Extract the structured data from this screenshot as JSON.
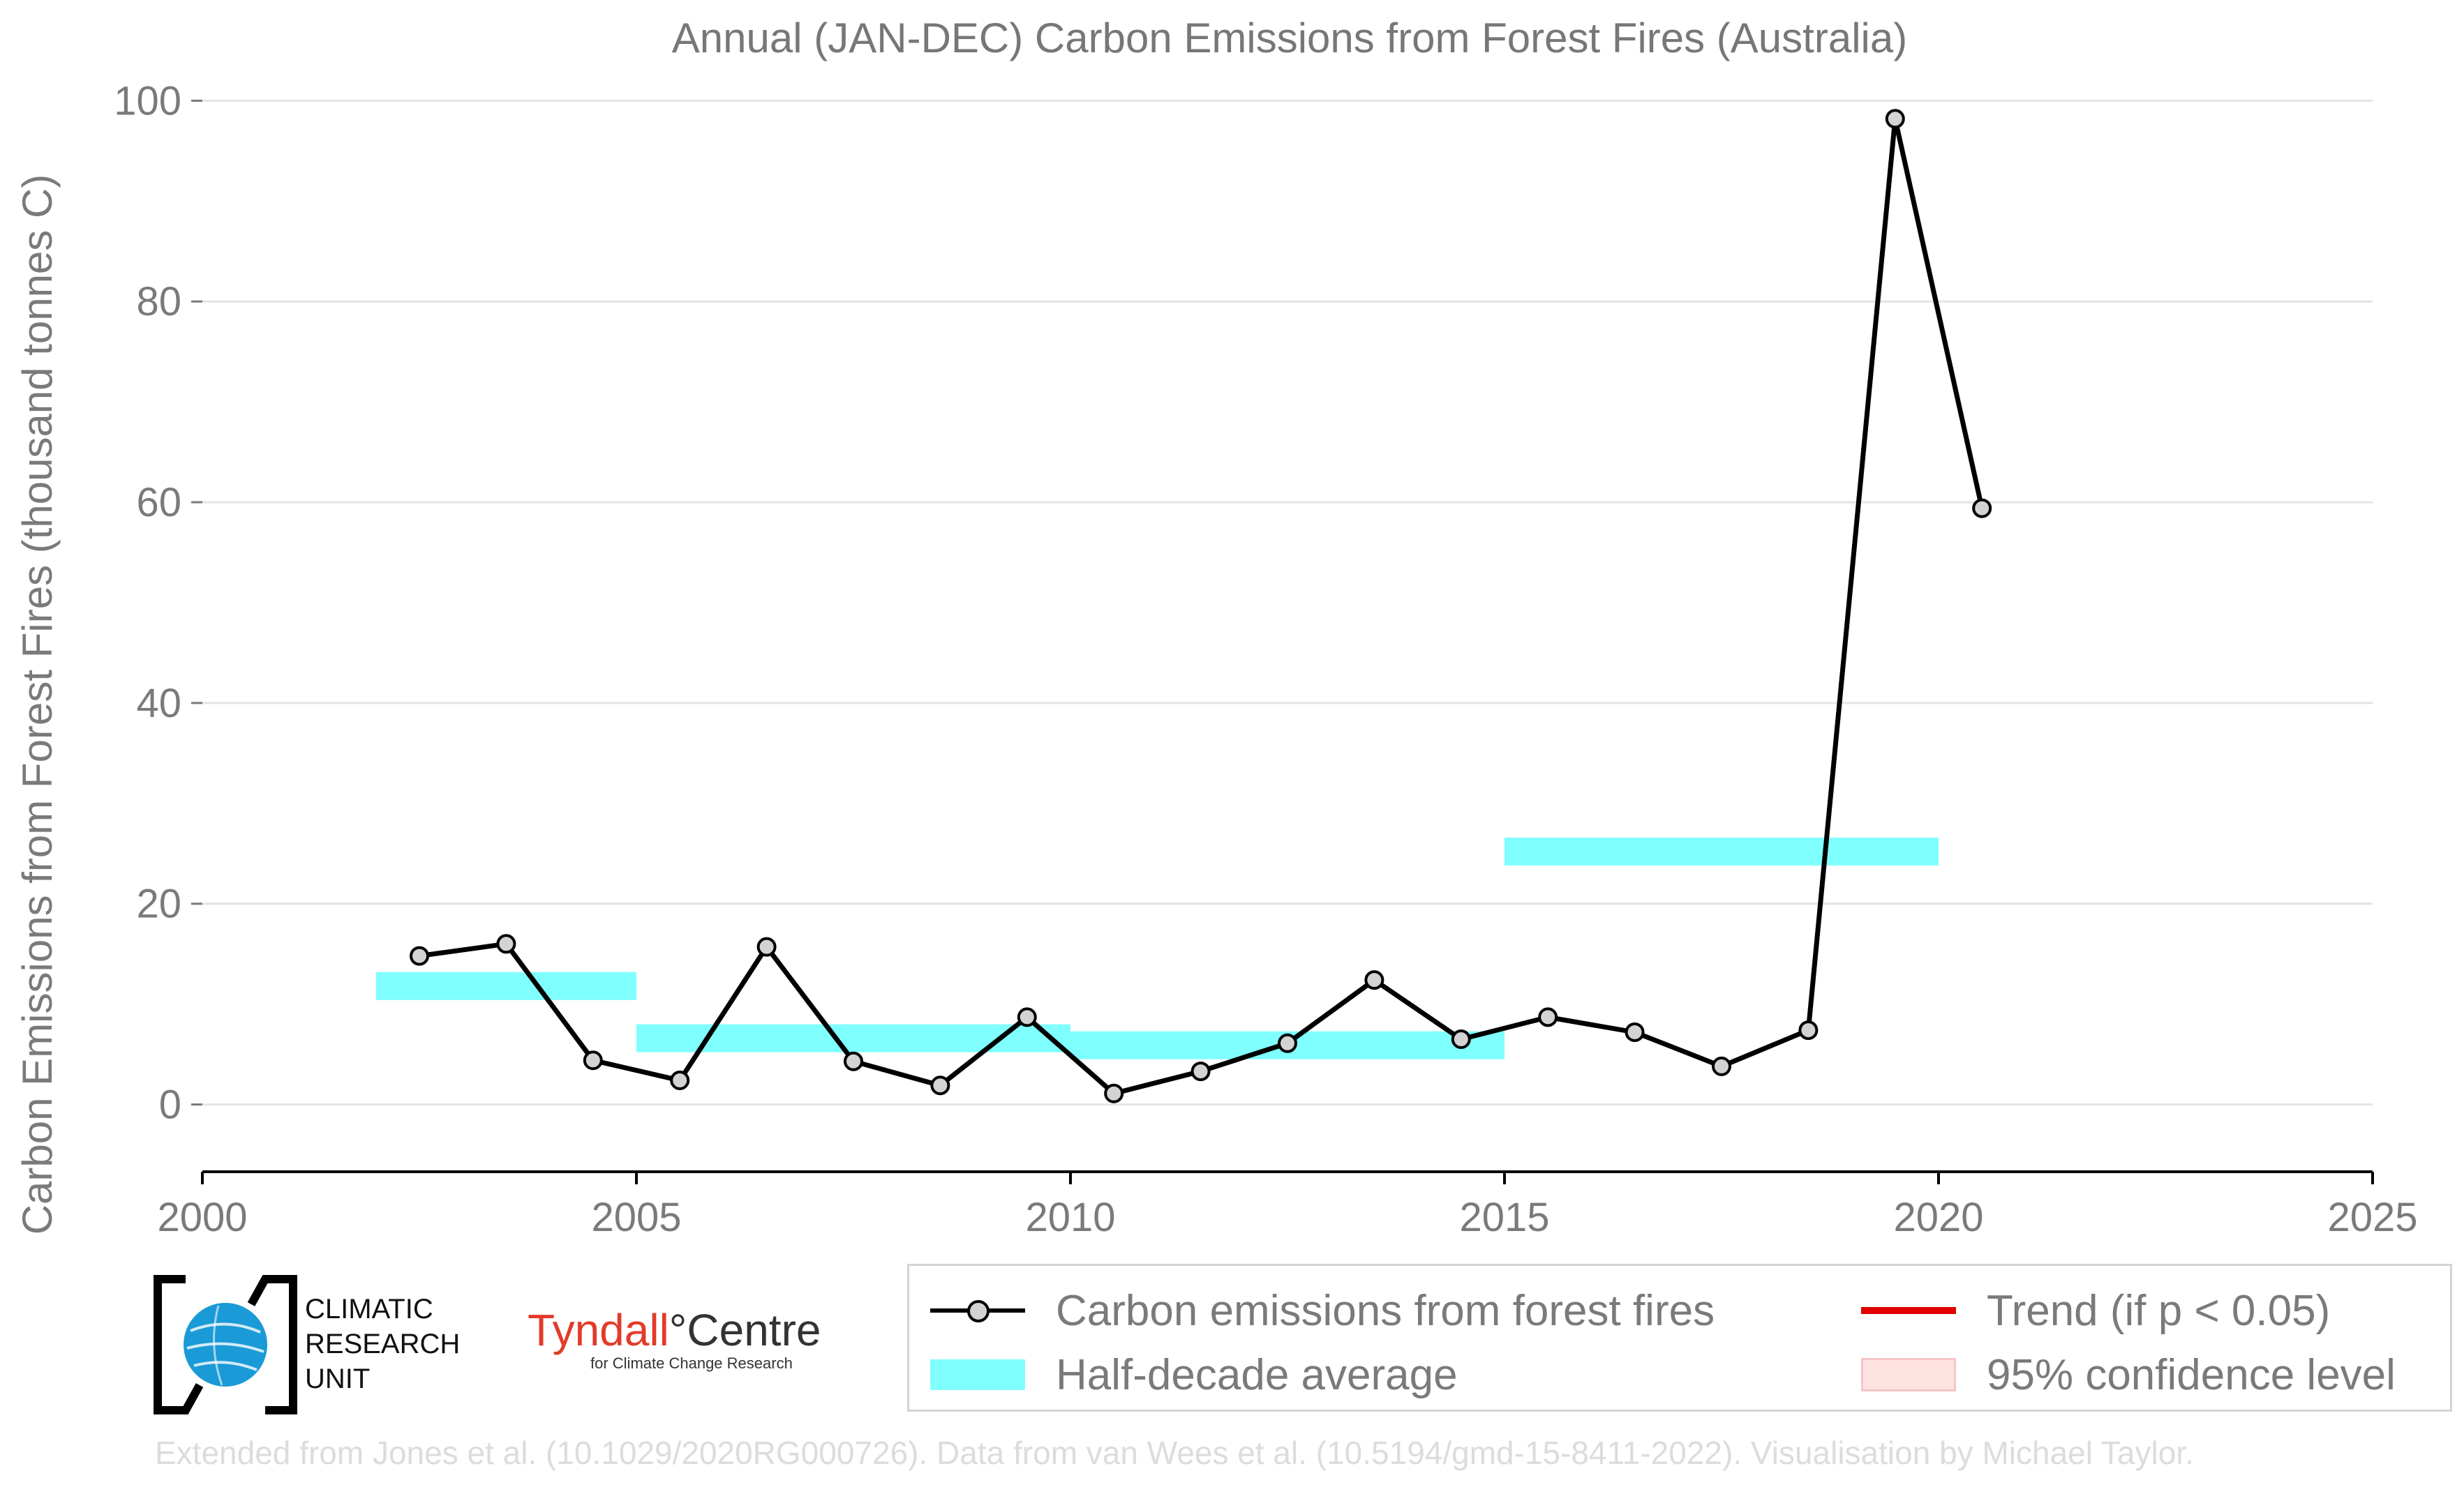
{
  "chart_data": {
    "type": "line",
    "title": "Annual (JAN-DEC) Carbon Emissions from Forest Fires (Australia)",
    "xlabel": "",
    "ylabel": "Carbon Emissions from Forest Fires (thousand tonnes C)",
    "xlim": [
      2000,
      2025
    ],
    "ylim": [
      -6.7,
      101
    ],
    "x_ticks": [
      2000,
      2005,
      2010,
      2015,
      2020,
      2025
    ],
    "y_ticks": [
      0,
      20,
      40,
      60,
      80,
      100
    ],
    "grid": true,
    "series": [
      {
        "name": "Carbon emissions from forest fires",
        "color": "#000000",
        "marker_color": "#d3d3d3",
        "x": [
          2002.5,
          2003.5,
          2004.5,
          2005.5,
          2006.5,
          2007.5,
          2008.5,
          2009.5,
          2010.5,
          2011.5,
          2012.5,
          2013.5,
          2014.5,
          2015.5,
          2016.5,
          2017.5,
          2018.5,
          2019.5,
          2020.5
        ],
        "values": [
          14.8,
          16.0,
          4.4,
          2.4,
          15.7,
          4.3,
          1.9,
          8.7,
          1.1,
          3.3,
          6.1,
          12.4,
          6.5,
          8.7,
          7.2,
          3.8,
          7.4,
          98.2,
          59.4
        ]
      }
    ],
    "half_decade_average": {
      "name": "Half-decade average",
      "color": "#80ffff",
      "segments": [
        {
          "x0": 2002,
          "x1": 2005,
          "value": 11.8
        },
        {
          "x0": 2005,
          "x1": 2010,
          "value": 6.6
        },
        {
          "x0": 2010,
          "x1": 2015,
          "value": 5.9
        },
        {
          "x0": 2015,
          "x1": 2020,
          "value": 25.2
        }
      ]
    },
    "legend": {
      "placement": "bottom-right",
      "entries": [
        {
          "label": "Carbon emissions from forest fires",
          "swatch": "line-marker"
        },
        {
          "label": "Half-decade average",
          "swatch": "band",
          "color": "#80ffff"
        },
        {
          "label": "Trend (if p < 0.05)",
          "swatch": "line",
          "color": "#e00000"
        },
        {
          "label": "95% confidence level",
          "swatch": "band",
          "color": "#ffe2e2"
        }
      ]
    }
  },
  "logos": {
    "cru_text": [
      "CLIMATIC",
      "RESEARCH",
      "UNIT"
    ],
    "tyndall_name": "Tyndall",
    "tyndall_degree": "°",
    "tyndall_centre": "Centre",
    "tyndall_sub": "for Climate Change Research"
  },
  "footer": "Extended from Jones et al. (10.1029/2020RG000726). Data from van Wees et al. (10.5194/gmd-15-8411-2022). Visualisation by Michael Taylor."
}
